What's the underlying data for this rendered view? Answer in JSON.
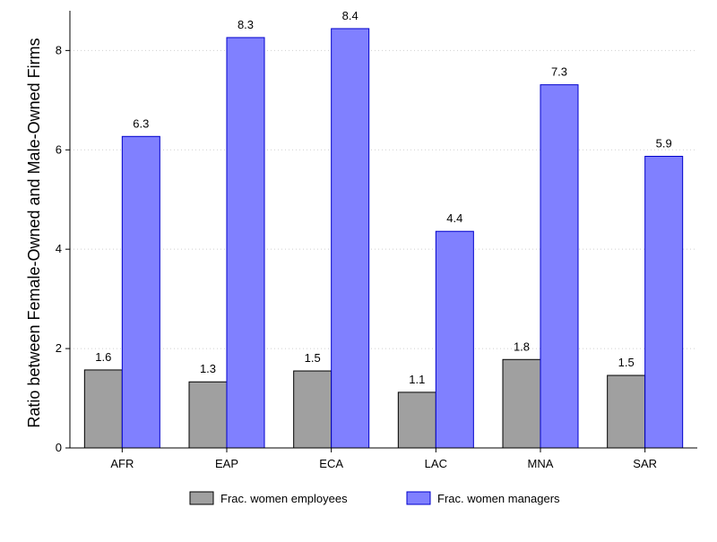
{
  "chart_data": {
    "type": "bar",
    "categories": [
      "AFR",
      "EAP",
      "ECA",
      "LAC",
      "MNA",
      "SAR"
    ],
    "series": [
      {
        "name": "Frac. women employees",
        "values": [
          1.57,
          1.33,
          1.55,
          1.12,
          1.78,
          1.46
        ],
        "labels": [
          "1.6",
          "1.3",
          "1.5",
          "1.1",
          "1.8",
          "1.5"
        ],
        "color": "#a0a0a0"
      },
      {
        "name": "Frac. women managers",
        "values": [
          6.27,
          8.26,
          8.44,
          4.36,
          7.31,
          5.87
        ],
        "labels": [
          "6.3",
          "8.3",
          "8.4",
          "4.4",
          "7.3",
          "5.9"
        ],
        "color": "#8080ff"
      }
    ],
    "title": "",
    "xlabel": "",
    "ylabel": "Ratio between Female-Owned and Male-Owned Firms",
    "ylim": [
      0,
      8.8
    ],
    "yticks": [
      0,
      2,
      4,
      6,
      8
    ],
    "grid": true,
    "legend_position": "bottom",
    "edge_colors": [
      "#000000",
      "#0000cc"
    ]
  }
}
